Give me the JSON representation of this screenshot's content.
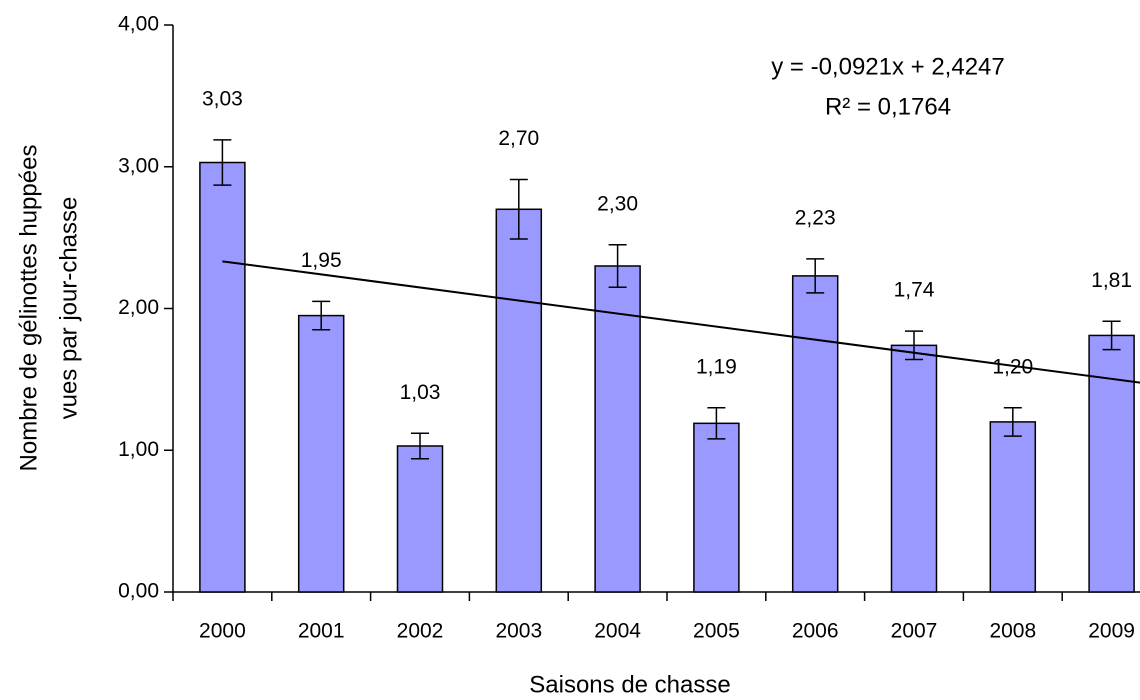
{
  "chart_data": {
    "type": "bar",
    "x_label": "Saisons de chasse",
    "y_label": [
      "Nombre de gélinottes huppées",
      "vues par jour-chasse"
    ],
    "categories": [
      "2000",
      "2001",
      "2002",
      "2003",
      "2004",
      "2005",
      "2006",
      "2007",
      "2008",
      "2009"
    ],
    "values": [
      3.03,
      1.95,
      1.03,
      2.7,
      2.3,
      1.19,
      2.23,
      1.74,
      1.2,
      1.81
    ],
    "value_labels": [
      "3,03",
      "1,95",
      "1,03",
      "2,70",
      "2,30",
      "1,19",
      "2,23",
      "1,74",
      "1,20",
      "1,81"
    ],
    "errors": [
      0.16,
      0.1,
      0.09,
      0.21,
      0.15,
      0.11,
      0.12,
      0.1,
      0.1,
      0.1
    ],
    "color": "#9999ff",
    "ylim": [
      0,
      4
    ],
    "yticks": [
      {
        "value": 0,
        "label": "0,00"
      },
      {
        "value": 1,
        "label": "1,00"
      },
      {
        "value": 2,
        "label": "2,00"
      },
      {
        "value": 3,
        "label": "3,00"
      },
      {
        "value": 4,
        "label": "4,00"
      }
    ],
    "trendline": {
      "slope": -0.0921,
      "intercept": 2.4247,
      "equation": "y = -0,0921x + 2,4247",
      "r_squared": 0.1764,
      "r_squared_label": "R² = 0,1764"
    }
  }
}
